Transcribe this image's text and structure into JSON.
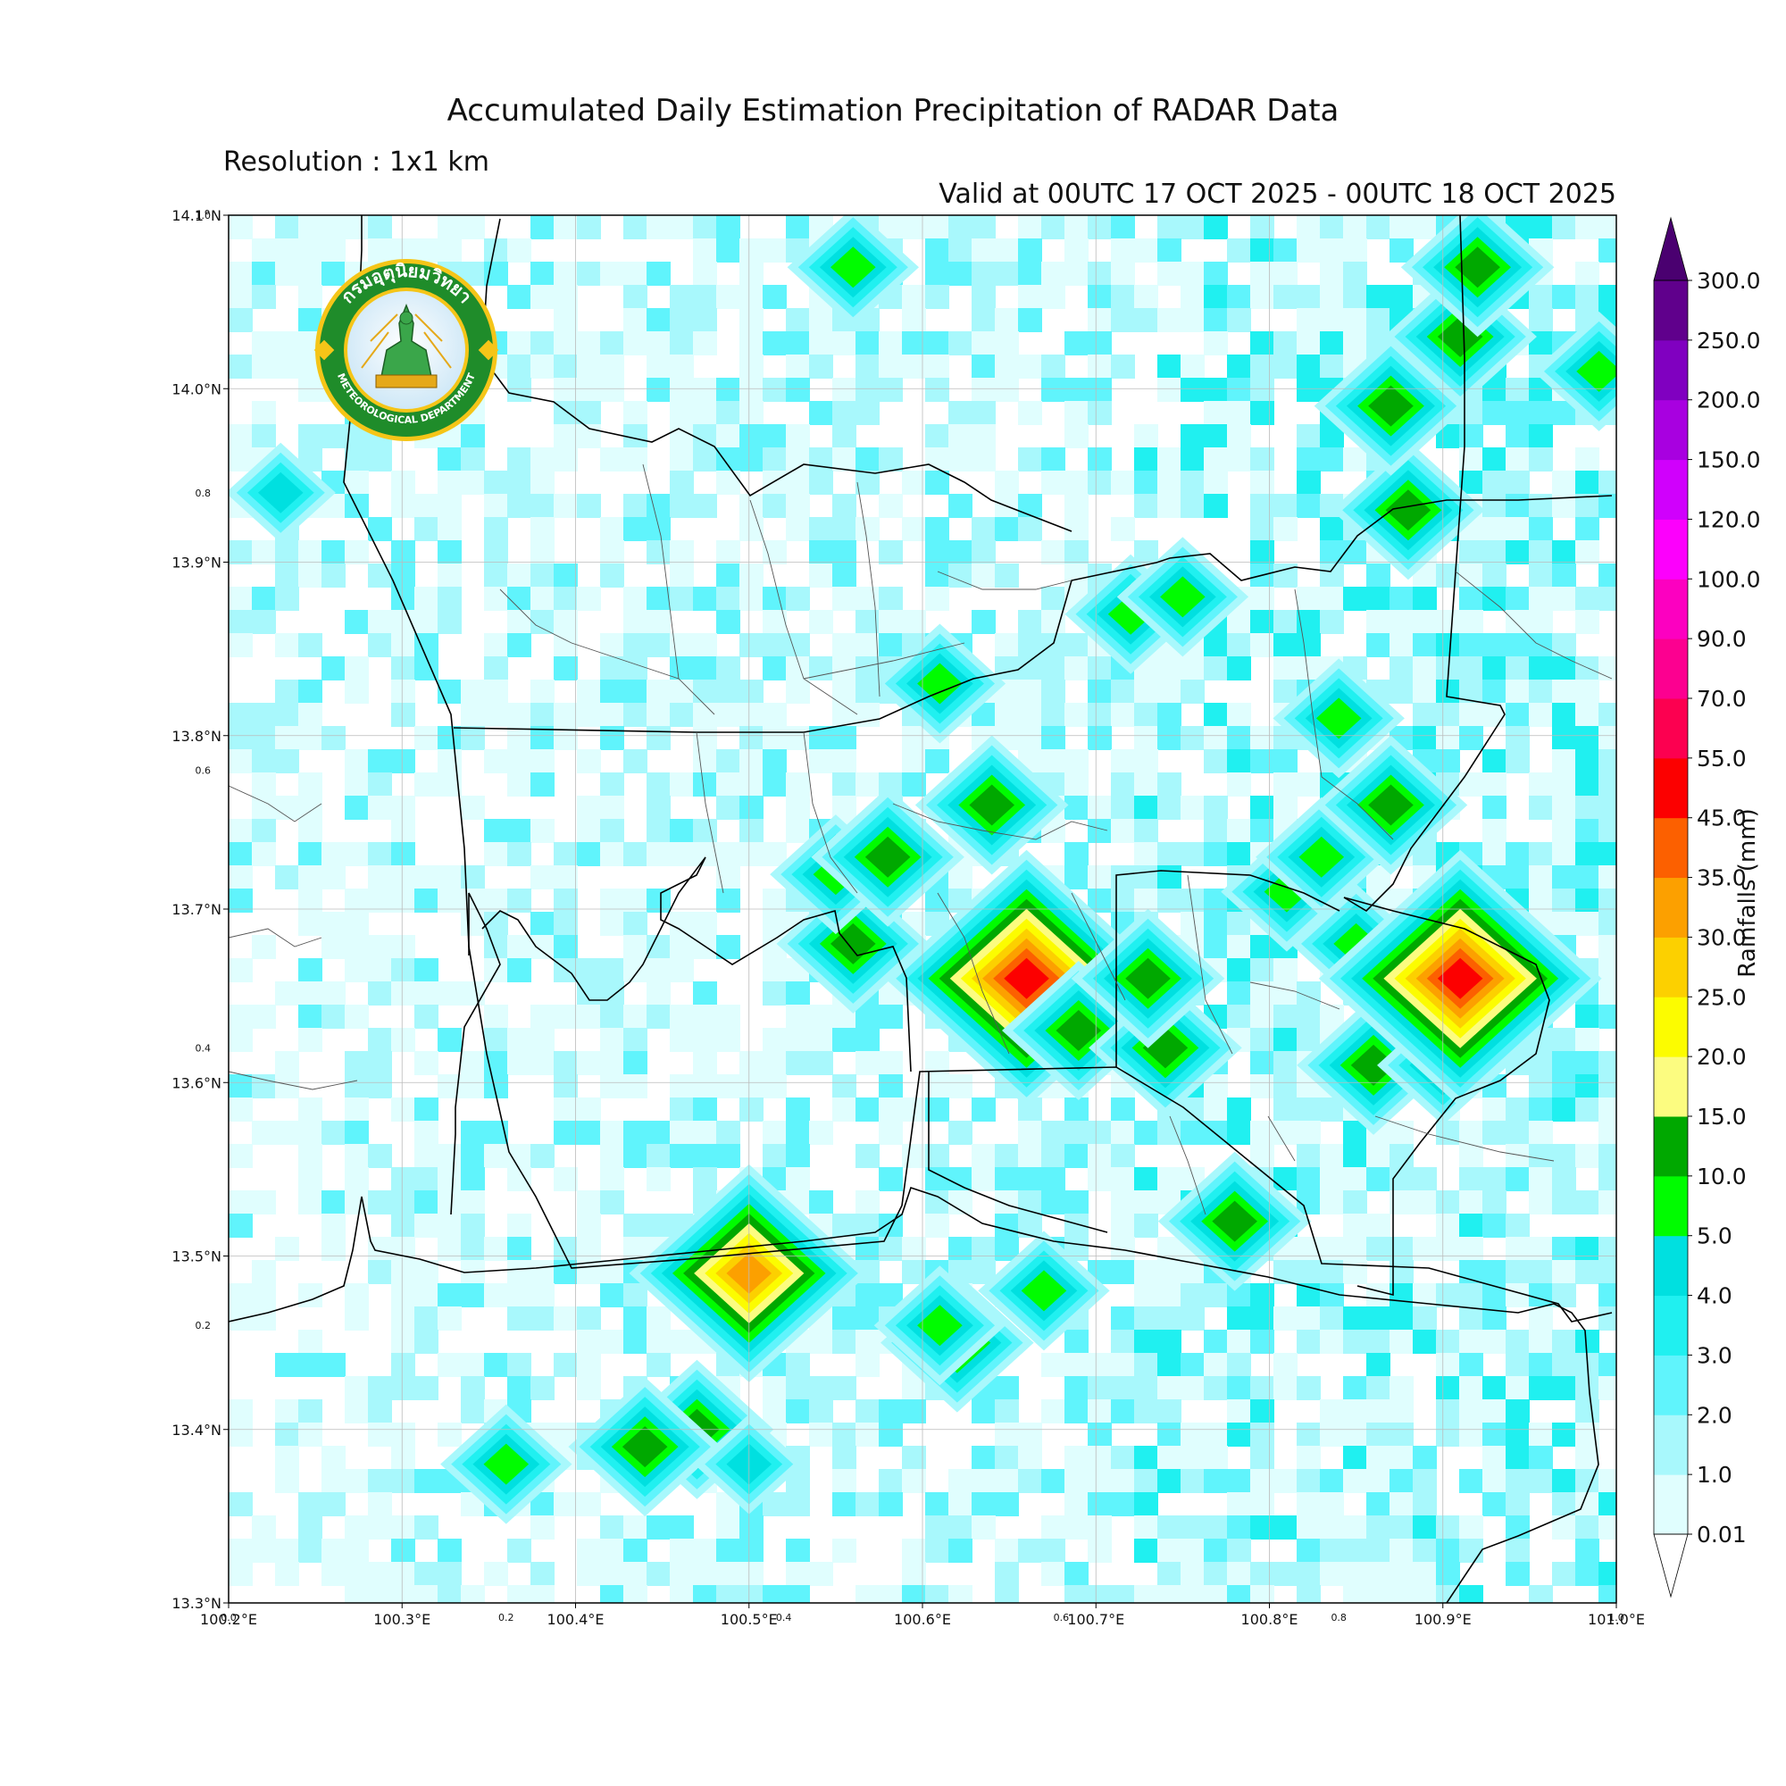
{
  "title": "Accumulated Daily Estimation Precipitation of RADAR Data",
  "subtitle": "Resolution : 1x1 km",
  "valid": "Valid at 00UTC 17 OCT 2025 - 00UTC 18 OCT 2025",
  "logo": {
    "top_text": "กรมอุตุนิยมวิทยา",
    "bottom_text": "METEOROLOGICAL DEPARTMENT",
    "emblem": "thai-deity-emblem-icon"
  },
  "map_extent": {
    "lon": [
      100.2,
      101.0
    ],
    "lat": [
      13.3,
      14.1
    ]
  },
  "lon_ticks": [
    "100.2°E",
    "100.3°E",
    "100.4°E",
    "100.5°E",
    "100.6°E",
    "100.7°E",
    "100.8°E",
    "100.9°E",
    "101.0°E"
  ],
  "lat_ticks": [
    "13.3°N",
    "13.4°N",
    "13.5°N",
    "13.6°N",
    "13.7°N",
    "13.8°N",
    "13.9°N",
    "14.0°N",
    "14.1°N"
  ],
  "frac_ticks": [
    "0.2",
    "0.4",
    "0.6",
    "0.8",
    "1.0"
  ],
  "colorbar": {
    "title": "Rainfalls (mm)",
    "levels": [
      "0.01",
      "1.0",
      "2.0",
      "3.0",
      "4.0",
      "5.0",
      "10.0",
      "15.0",
      "20.0",
      "25.0",
      "30.0",
      "35.0",
      "45.0",
      "55.0",
      "70.0",
      "90.0",
      "100.0",
      "120.0",
      "150.0",
      "200.0",
      "250.0",
      "300.0"
    ],
    "colors": [
      "#e0fefe",
      "#a8f8fc",
      "#60f4fc",
      "#20f0f0",
      "#00e0e0",
      "#00fc00",
      "#00a800",
      "#fcfc80",
      "#fcfc00",
      "#fcd000",
      "#fca000",
      "#fc6000",
      "#fc0000",
      "#fc0050",
      "#fc0090",
      "#fc00c0",
      "#fc00fc",
      "#d000fc",
      "#a800e0",
      "#8000c0",
      "#60008c"
    ],
    "under_color": "#ffffff",
    "over_color": "#4a0070"
  },
  "rain_cells": [
    {
      "lon": 100.47,
      "lat": 13.4,
      "mm": 14
    },
    {
      "lon": 100.44,
      "lat": 13.39,
      "mm": 12
    },
    {
      "lon": 100.36,
      "lat": 13.38,
      "mm": 6
    },
    {
      "lon": 100.5,
      "lat": 13.38,
      "mm": 4
    },
    {
      "lon": 100.62,
      "lat": 13.45,
      "mm": 12
    },
    {
      "lon": 100.61,
      "lat": 13.46,
      "mm": 6
    },
    {
      "lon": 100.67,
      "lat": 13.48,
      "mm": 6
    },
    {
      "lon": 100.5,
      "lat": 13.49,
      "mm": 30
    },
    {
      "lon": 100.56,
      "lat": 13.68,
      "mm": 14
    },
    {
      "lon": 100.55,
      "lat": 13.72,
      "mm": 6
    },
    {
      "lon": 100.58,
      "lat": 13.73,
      "mm": 12
    },
    {
      "lon": 100.64,
      "lat": 13.76,
      "mm": 12
    },
    {
      "lon": 100.66,
      "lat": 13.66,
      "mm": 50
    },
    {
      "lon": 100.69,
      "lat": 13.63,
      "mm": 12
    },
    {
      "lon": 100.74,
      "lat": 13.62,
      "mm": 12
    },
    {
      "lon": 100.73,
      "lat": 13.66,
      "mm": 12
    },
    {
      "lon": 100.78,
      "lat": 13.52,
      "mm": 12
    },
    {
      "lon": 100.86,
      "lat": 13.61,
      "mm": 14
    },
    {
      "lon": 100.9,
      "lat": 13.61,
      "mm": 7
    },
    {
      "lon": 100.85,
      "lat": 13.68,
      "mm": 7
    },
    {
      "lon": 100.81,
      "lat": 13.71,
      "mm": 7
    },
    {
      "lon": 100.83,
      "lat": 13.73,
      "mm": 7
    },
    {
      "lon": 100.87,
      "lat": 13.76,
      "mm": 14
    },
    {
      "lon": 100.91,
      "lat": 13.66,
      "mm": 50
    },
    {
      "lon": 100.72,
      "lat": 13.87,
      "mm": 6
    },
    {
      "lon": 100.75,
      "lat": 13.88,
      "mm": 6
    },
    {
      "lon": 100.84,
      "lat": 13.81,
      "mm": 6
    },
    {
      "lon": 100.88,
      "lat": 13.93,
      "mm": 14
    },
    {
      "lon": 100.87,
      "lat": 13.99,
      "mm": 14
    },
    {
      "lon": 100.91,
      "lat": 14.03,
      "mm": 14
    },
    {
      "lon": 100.92,
      "lat": 14.07,
      "mm": 14
    },
    {
      "lon": 100.56,
      "lat": 14.07,
      "mm": 6
    },
    {
      "lon": 100.61,
      "lat": 13.83,
      "mm": 6
    },
    {
      "lon": 100.23,
      "lat": 13.94,
      "mm": 4
    },
    {
      "lon": 100.99,
      "lat": 14.01,
      "mm": 6
    }
  ]
}
